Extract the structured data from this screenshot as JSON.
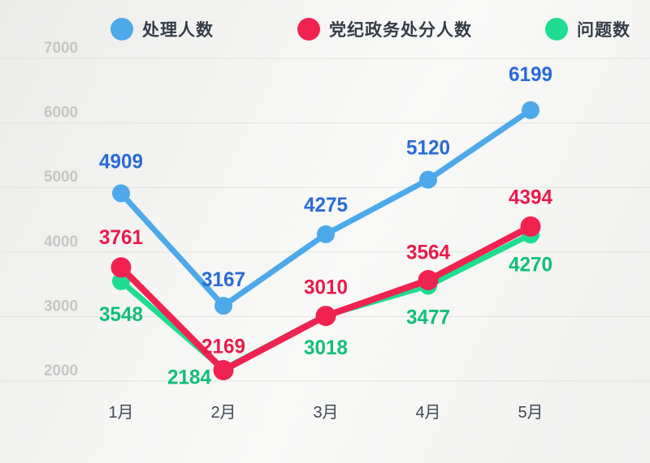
{
  "chart_data": {
    "type": "line",
    "title": "",
    "xlabel": "",
    "ylabel": "",
    "categories": [
      "1月",
      "2月",
      "3月",
      "4月",
      "5月"
    ],
    "series": [
      {
        "name": "处理人数",
        "values": [
          4909,
          3167,
          4275,
          5120,
          6199
        ],
        "color": "#4da9e9",
        "label_color": "#2a6ad8",
        "line_width": 7,
        "point_radius": 11,
        "label_offsets": [
          [
            0,
            -31
          ],
          [
            0,
            -24
          ],
          [
            0,
            -28
          ],
          [
            0,
            -31
          ],
          [
            0,
            -36
          ]
        ]
      },
      {
        "name": "党纪政务处分人数",
        "values": [
          3761,
          2169,
          3010,
          3564,
          4394
        ],
        "color": "#f02350",
        "label_color": "#e91a4b",
        "line_width": 8,
        "point_radius": 12.5,
        "label_offsets": [
          [
            0,
            -29
          ],
          [
            0,
            -21
          ],
          [
            0,
            -27
          ],
          [
            0,
            -26
          ],
          [
            0,
            -28
          ]
        ]
      },
      {
        "name": "问题数",
        "values": [
          3548,
          2184,
          3018,
          3477,
          4270
        ],
        "color": "#1edd90",
        "label_color": "#10be78",
        "line_width": 7,
        "point_radius": 11,
        "label_offsets": [
          [
            0,
            49
          ],
          [
            -42,
            18
          ],
          [
            0,
            48
          ],
          [
            0,
            47
          ],
          [
            0,
            45
          ]
        ]
      }
    ],
    "ylim": [
      2000,
      7000
    ],
    "yticks": [
      7000,
      6000,
      5000,
      4000,
      3000,
      2000
    ],
    "grid": true,
    "legend_position": "top",
    "draw_order": [
      2,
      1,
      0
    ]
  },
  "styles": {
    "grid_color": "#e2e2e1",
    "ytick_color": "#c6c6c6",
    "xlabel_color": "#3e4a55",
    "legend_text_color": "#343d47"
  }
}
